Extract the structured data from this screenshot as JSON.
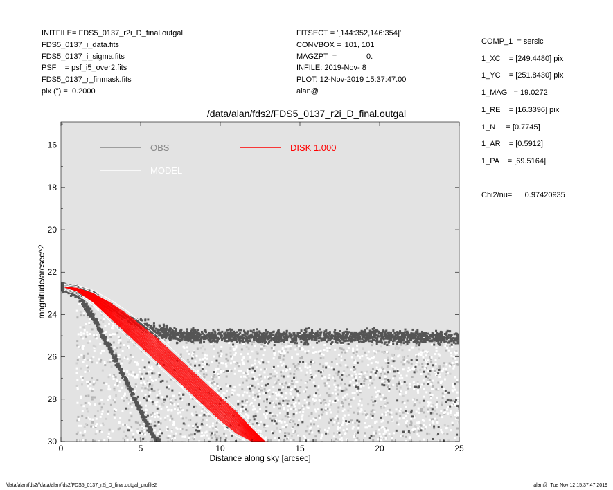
{
  "header_left": [
    "INITFILE= FDS5_0137_r2i_D_final.outgal",
    "FDS5_0137_i_data.fits",
    "FDS5_0137_i_sigma.fits",
    "PSF    = psf_i5_over2.fits",
    "FDS5_0137_r_finmask.fits",
    "pix (\") =  0.2000"
  ],
  "header_mid": [
    "FITSECT = '[144:352,146:354]'",
    "CONVBOX = '101, 101'",
    "MAGZPT  =              0.",
    "INFILE: 2019-Nov- 8",
    "PLOT: 12-Nov-2019 15:37:47.00",
    "alan@"
  ],
  "header_right": [
    "COMP_1  = sersic",
    "1_XC    = [249.4480] pix",
    "1_YC    = [251.8430] pix",
    "1_MAG   = 19.0272",
    "1_RE    = [16.3396] pix",
    "1_N     = [0.7745]",
    "1_AR    = [0.5912]",
    "1_PA    = [69.5164]"
  ],
  "chi2": "Chi2/nu=      0.97420935",
  "footer_left": "/data/alan/fds2//data/alan/fds2/FDS5_0137_r2i_D_final.outgal_profile2",
  "footer_right": "alan@  Tue Nov 12 15:37:47 2019",
  "colors": {
    "plot_bg": "#e3e3e3",
    "obs": "#555555",
    "obs_light": "#b5b5b5",
    "model": "#ffffff",
    "disk": "#ff0000"
  },
  "chart_data": {
    "type": "scatter",
    "title": "/data/alan/fds2/FDS5_0137_r2i_D_final.outgal",
    "xlabel": "Distance along sky [arcsec]",
    "ylabel": "magnitude/arcsec^2",
    "xlim": [
      0,
      25
    ],
    "ylim": [
      30,
      14.9
    ],
    "y_inverted": true,
    "xticks": [
      0,
      5,
      10,
      15,
      20,
      25
    ],
    "yticks": [
      16,
      18,
      20,
      22,
      24,
      26,
      28,
      30
    ],
    "grid": false,
    "legend": [
      {
        "name": "OBS",
        "color": "#888888"
      },
      {
        "name": "MODEL",
        "color": "#ffffff"
      },
      {
        "name": "DISK  1.000",
        "color": "#ff0000"
      }
    ],
    "series": [
      {
        "name": "OBS",
        "description": "upper envelope of observed surface brightness",
        "x": [
          0.2,
          1,
          2,
          3,
          4,
          5,
          6,
          7,
          8,
          10,
          12,
          15,
          20,
          25
        ],
        "y": [
          22.7,
          22.8,
          23.1,
          23.6,
          24.1,
          24.5,
          24.8,
          24.95,
          25.0,
          25.05,
          25.05,
          25.05,
          25.05,
          25.1
        ]
      },
      {
        "name": "OBS",
        "description": "lower (faint) envelope of observed surface brightness",
        "x": [
          0.2,
          1,
          2,
          3,
          4,
          5,
          6
        ],
        "y": [
          22.7,
          23.0,
          24.1,
          25.5,
          27.0,
          28.6,
          30.0
        ]
      },
      {
        "name": "DISK  1.000",
        "description": "model disk band, bright edge",
        "x": [
          0.2,
          1,
          2,
          3,
          4,
          5,
          6,
          7,
          8,
          9,
          10,
          11,
          12,
          12.8
        ],
        "y": [
          22.7,
          22.75,
          23.0,
          23.4,
          23.9,
          24.5,
          25.1,
          25.8,
          26.5,
          27.2,
          27.9,
          28.6,
          29.4,
          30.0
        ]
      },
      {
        "name": "DISK  1.000",
        "description": "model disk band, faint edge",
        "x": [
          0.2,
          1,
          2,
          3,
          4,
          5,
          6,
          7,
          8,
          9,
          10,
          11,
          12
        ],
        "y": [
          22.7,
          22.9,
          23.4,
          24.1,
          24.8,
          25.5,
          26.2,
          26.9,
          27.6,
          28.3,
          29.0,
          29.6,
          30.0
        ]
      }
    ]
  }
}
